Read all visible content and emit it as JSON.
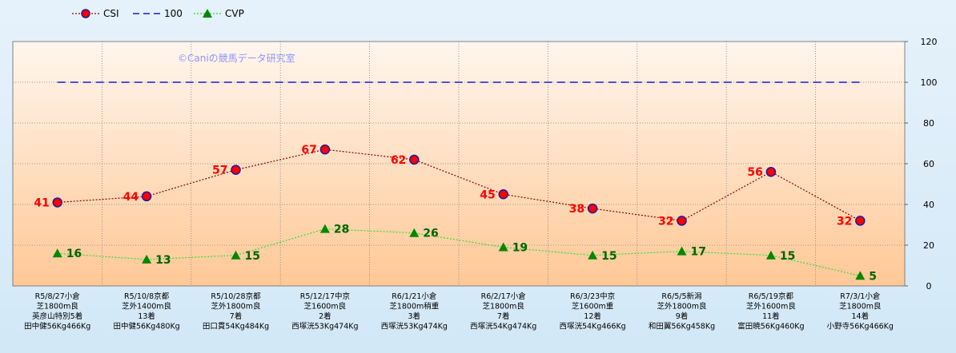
{
  "watermark": "©Caniの競馬データ研究室",
  "colors": {
    "csi_line": "#8b0000",
    "csi_marker_fill": "#ff0000",
    "csi_marker_stroke": "#1a1aa0",
    "csi_label": "#ff0000",
    "ref_line": "#1a1ad0",
    "cvp_line": "#33dd33",
    "cvp_marker": "#008800",
    "cvp_label": "#006400",
    "plot_bg_top": "#fff6ee",
    "plot_bg_bottom": "#ffc896",
    "grid": "#808080"
  },
  "chart_data": {
    "type": "line",
    "categories": [
      [
        "R5/8/27小倉",
        "芝1800m良",
        "英彦山特別5着",
        "田中健56Kg466Kg"
      ],
      [
        "R5/10/8京都",
        "芝外1400m良",
        "13着",
        "田中健56Kg480Kg"
      ],
      [
        "R5/10/28京都",
        "芝外1800m良",
        "7着",
        "田口貫54Kg484Kg"
      ],
      [
        "R5/12/17中京",
        "芝1600m良",
        "2着",
        "西塚洸53Kg474Kg"
      ],
      [
        "R6/1/21小倉",
        "芝1800m稍重",
        "3着",
        "西塚洸53Kg474Kg"
      ],
      [
        "R6/2/17小倉",
        "芝1800m良",
        "7着",
        "西塚洸54Kg474Kg"
      ],
      [
        "R6/3/23中京",
        "芝1600m重",
        "12着",
        "西塚洸54Kg466Kg"
      ],
      [
        "R6/5/5新潟",
        "芝外1800m良",
        "9着",
        "和田翼56Kg458Kg"
      ],
      [
        "R6/5/19京都",
        "芝外1600m良",
        "11着",
        "富田暁56Kg460Kg"
      ],
      [
        "R7/3/1小倉",
        "芝1800m良",
        "14着",
        "小野寺56Kg466Kg"
      ]
    ],
    "series": [
      {
        "name": "CSI",
        "values": [
          41,
          44,
          57,
          67,
          62,
          45,
          38,
          32,
          56,
          32
        ],
        "style": "dotted-line-circle"
      },
      {
        "name": "100",
        "values": [
          100,
          100,
          100,
          100,
          100,
          100,
          100,
          100,
          100,
          100
        ],
        "style": "dashed-line"
      },
      {
        "name": "CVP",
        "values": [
          16,
          13,
          15,
          28,
          26,
          19,
          15,
          17,
          15,
          5
        ],
        "style": "dotted-line-triangle"
      }
    ],
    "ylim": [
      0,
      120
    ],
    "yticks": [
      "0",
      "20",
      "40",
      "60",
      "80",
      "100",
      "120"
    ],
    "y_axis_side": "right",
    "grid": true,
    "legend": "top-left"
  }
}
